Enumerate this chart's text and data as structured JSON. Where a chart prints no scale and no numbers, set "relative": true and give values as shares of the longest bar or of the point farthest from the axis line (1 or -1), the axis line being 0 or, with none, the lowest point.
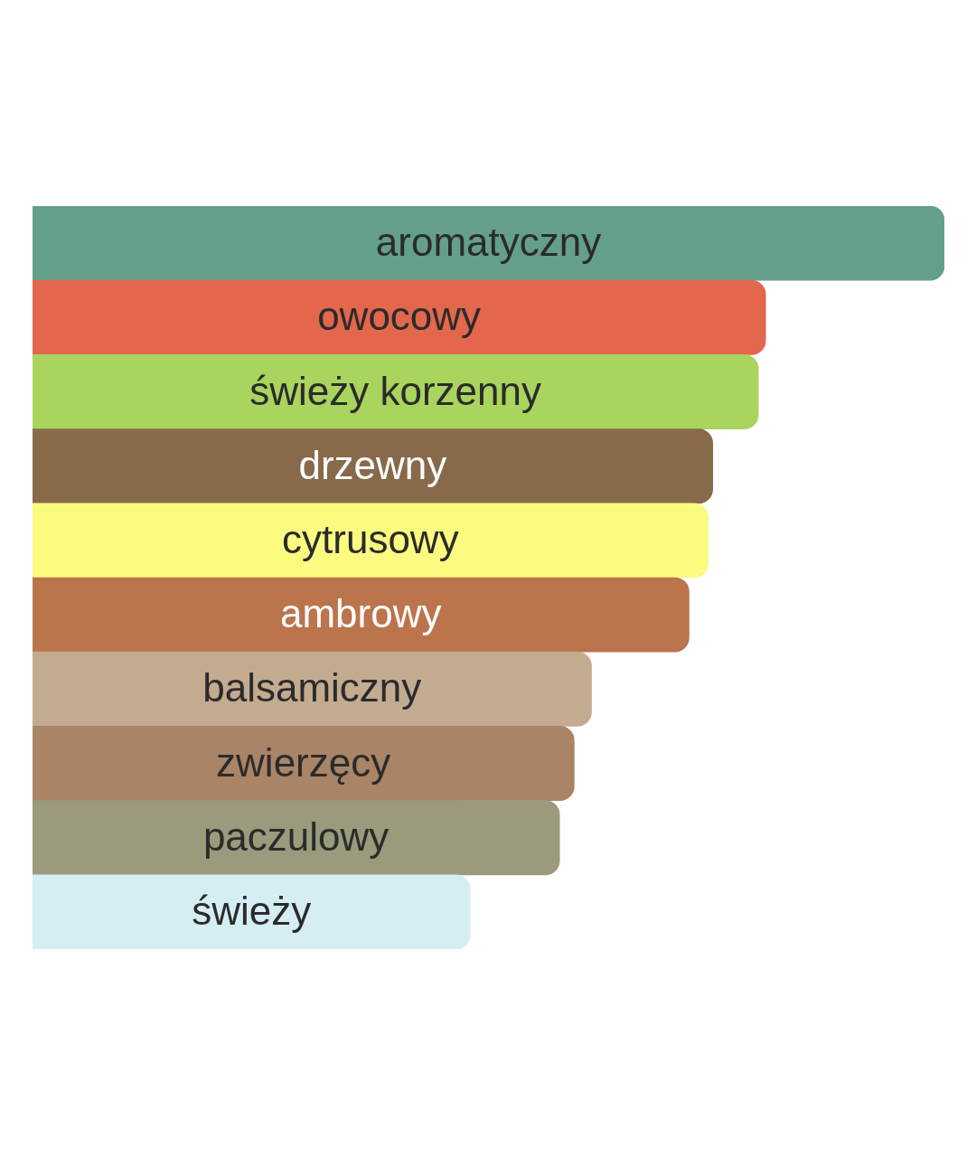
{
  "chart_data": {
    "type": "bar",
    "orientation": "horizontal",
    "relative": true,
    "categories": [
      "aromatyczny",
      "owocowy",
      "świeży korzenny",
      "drzewny",
      "cytrusowy",
      "ambrowy",
      "balsamiczny",
      "zwierzęcy",
      "paczulowy",
      "świeży"
    ],
    "values": [
      1,
      0.804,
      0.796,
      0.746,
      0.741,
      0.72,
      0.613,
      0.594,
      0.578,
      0.48
    ],
    "colors": [
      "#64a088",
      "#e2674d",
      "#a9d45e",
      "#886a4a",
      "#fbfb80",
      "#bb744c",
      "#c3ab8f",
      "#a98466",
      "#9b9a7c",
      "#d5eef4"
    ]
  }
}
